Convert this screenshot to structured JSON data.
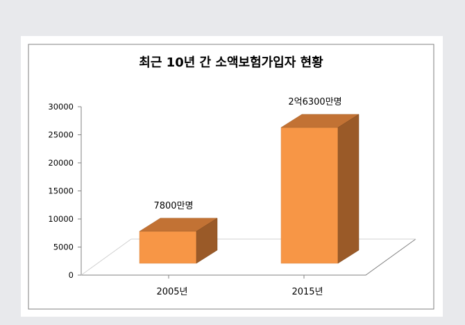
{
  "chart_data": {
    "type": "bar",
    "title": "최근 10년 간 소액보험가입자 현황",
    "categories": [
      "2005년",
      "2015년"
    ],
    "values": [
      7800,
      26300
    ],
    "data_labels": [
      "7800만명",
      "2억6300만명"
    ],
    "ylim": [
      0,
      30000
    ],
    "yticks": [
      "0",
      "5000",
      "10000",
      "15000",
      "20000",
      "25000",
      "30000"
    ],
    "xlabel": "",
    "ylabel": "",
    "legend": "none",
    "grid": false,
    "style": "3d-column",
    "colors": {
      "front": "#f79646",
      "top": "#c27234",
      "side": "#9a5a28"
    }
  }
}
